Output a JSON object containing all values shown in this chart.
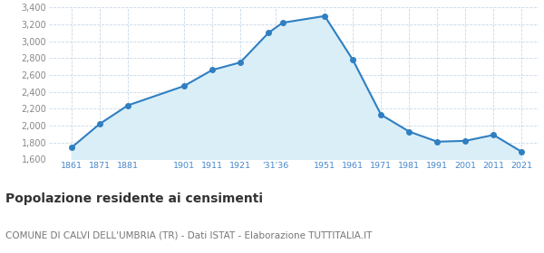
{
  "years": [
    1861,
    1871,
    1881,
    1901,
    1911,
    1921,
    1931,
    1936,
    1951,
    1961,
    1971,
    1981,
    1991,
    2001,
    2011,
    2021
  ],
  "population": [
    1740,
    2020,
    2240,
    2470,
    2660,
    2750,
    3100,
    3220,
    3300,
    2780,
    2130,
    1930,
    1810,
    1820,
    1890,
    1690
  ],
  "line_color": "#2f7fc1",
  "fill_color": "#daeef8",
  "marker_color": "#2f7fc1",
  "ylim": [
    1600,
    3400
  ],
  "yticks": [
    1600,
    1800,
    2000,
    2200,
    2400,
    2600,
    2800,
    3000,
    3200,
    3400
  ],
  "title": "Popolazione residente ai censimenti",
  "subtitle": "COMUNE DI CALVI DELL'UMBRIA (TR) - Dati ISTAT - Elaborazione TUTTITALIA.IT",
  "title_fontsize": 10,
  "subtitle_fontsize": 7.5,
  "background_color": "#ffffff",
  "grid_color": "#c8d8e8",
  "tick_label_color": "#4488cc",
  "ytick_label_color": "#888888"
}
